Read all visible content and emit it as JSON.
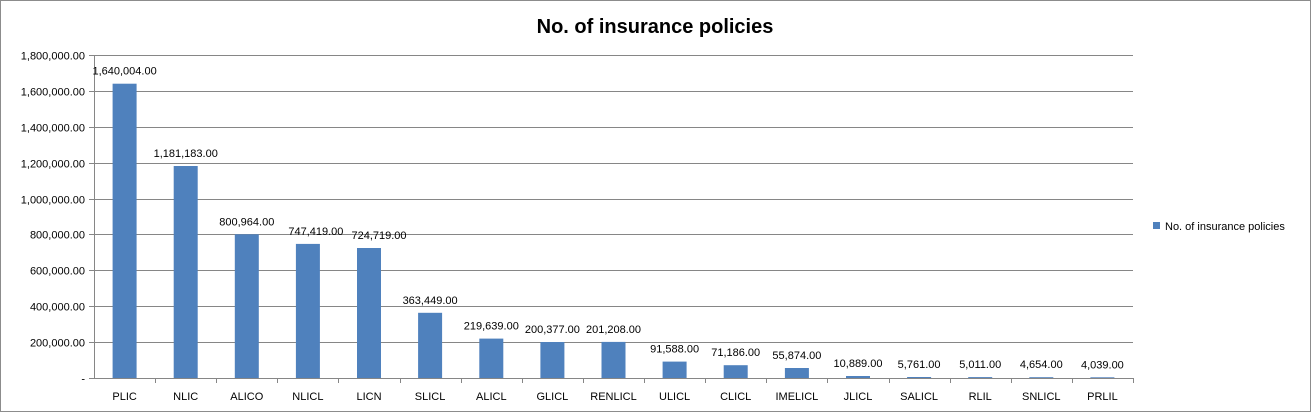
{
  "chart_data": {
    "type": "bar",
    "title": "No. of insurance policies",
    "xlabel": "",
    "ylabel": "",
    "ylim": [
      0,
      1800000
    ],
    "y_ticks": [
      0,
      200000,
      400000,
      600000,
      800000,
      1000000,
      1200000,
      1400000,
      1600000,
      1800000
    ],
    "y_tick_labels": [
      "-",
      "200,000.00",
      "400,000.00",
      "600,000.00",
      "800,000.00",
      "1,000,000.00",
      "1,200,000.00",
      "1,400,000.00",
      "1,600,000.00",
      "1,800,000.00"
    ],
    "categories": [
      "PLIC",
      "NLIC",
      "ALICO",
      "NLICL",
      "LICN",
      "SLICL",
      "ALICL",
      "GLICL",
      "RENLICL",
      "ULICL",
      "CLICL",
      "IMELICL",
      "JLICL",
      "SALICL",
      "RLIL",
      "SNLICL",
      "PRLIL"
    ],
    "series": [
      {
        "name": "No. of insurance policies",
        "color": "#4f81bd",
        "values": [
          1640004,
          1181183,
          800964,
          747419,
          724719,
          363449,
          219639,
          200377,
          201208,
          91588,
          71186,
          55874,
          10889,
          5761,
          5011,
          4654,
          4039
        ],
        "labels": [
          "1,640,004.00",
          "1,181,183.00",
          "800,964.00",
          "747,419.00",
          "724,719.00",
          "363,449.00",
          "219,639.00",
          "200,377.00",
          "201,208.00",
          "91,588.00",
          "71,186.00",
          "55,874.00",
          "10,889.00",
          "5,761.00",
          "5,011.00",
          "4,654.00",
          "4,039.00"
        ]
      }
    ],
    "grid": true,
    "legend": "right"
  }
}
